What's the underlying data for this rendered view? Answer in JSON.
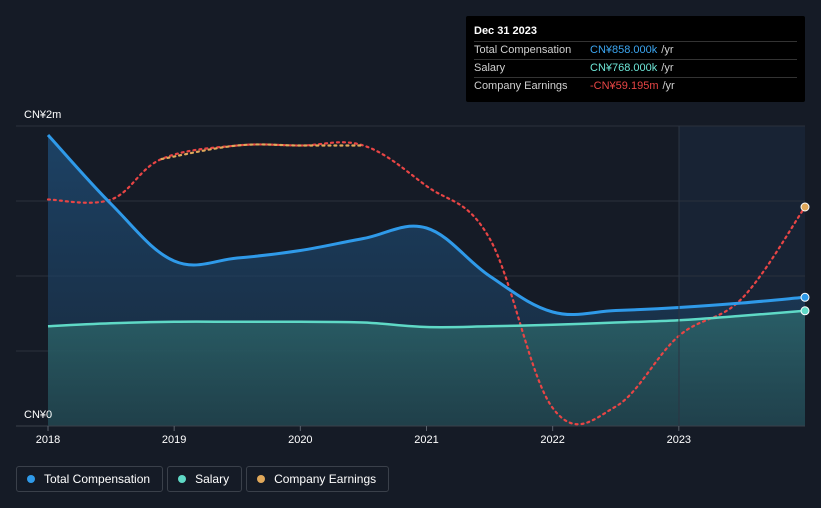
{
  "tooltip": {
    "date": "Dec 31 2023",
    "rows": [
      {
        "label": "Total Compensation",
        "value": "CN¥858.000k",
        "unit": "/yr",
        "color": "#3ba5f0"
      },
      {
        "label": "Salary",
        "value": "CN¥768.000k",
        "unit": "/yr",
        "color": "#6ee7d8"
      },
      {
        "label": "Company Earnings",
        "value": "-CN¥59.195m",
        "unit": "/yr",
        "color": "#e84545"
      }
    ]
  },
  "legend": [
    {
      "label": "Total Compensation",
      "color": "#2f9ae9"
    },
    {
      "label": "Salary",
      "color": "#5fd9c6"
    },
    {
      "label": "Company Earnings",
      "color": "#e0a85a"
    }
  ],
  "chart_data": {
    "type": "line",
    "y_tick_labels": [
      "CN¥2m",
      "CN¥0"
    ],
    "ylim": [
      0,
      2000
    ],
    "y_unit": "CN¥ thousands",
    "xlim": [
      2018.0,
      2024.0
    ],
    "x_ticks": [
      "2018",
      "2019",
      "2020",
      "2021",
      "2022",
      "2023"
    ],
    "forecast_start": 2023.0,
    "series": [
      {
        "name": "Total Compensation",
        "color": "#2f9ae9",
        "points": [
          [
            2018.0,
            1940
          ],
          [
            2018.5,
            1480
          ],
          [
            2019.0,
            1100
          ],
          [
            2019.5,
            1120
          ],
          [
            2020.0,
            1170
          ],
          [
            2020.5,
            1250
          ],
          [
            2021.0,
            1320
          ],
          [
            2021.5,
            1000
          ],
          [
            2022.0,
            760
          ],
          [
            2022.5,
            770
          ],
          [
            2023.0,
            790
          ],
          [
            2023.5,
            820
          ],
          [
            2024.0,
            858
          ]
        ]
      },
      {
        "name": "Salary",
        "color": "#5fd9c6",
        "points": [
          [
            2018.0,
            665
          ],
          [
            2018.5,
            685
          ],
          [
            2019.0,
            695
          ],
          [
            2019.5,
            695
          ],
          [
            2020.0,
            695
          ],
          [
            2020.5,
            690
          ],
          [
            2021.0,
            660
          ],
          [
            2021.5,
            665
          ],
          [
            2022.0,
            675
          ],
          [
            2022.5,
            690
          ],
          [
            2023.0,
            705
          ],
          [
            2023.5,
            735
          ],
          [
            2024.0,
            768
          ]
        ]
      },
      {
        "name": "Company Earnings",
        "color": "#e84545",
        "style": "dotted",
        "points": [
          [
            2018.0,
            1510
          ],
          [
            2018.5,
            1510
          ],
          [
            2018.9,
            1780
          ],
          [
            2019.5,
            1870
          ],
          [
            2020.0,
            1870
          ],
          [
            2020.5,
            1870
          ],
          [
            2021.0,
            1600
          ],
          [
            2021.5,
            1250
          ],
          [
            2022.0,
            120
          ],
          [
            2022.5,
            130
          ],
          [
            2023.0,
            600
          ],
          [
            2023.5,
            850
          ],
          [
            2024.0,
            1460
          ]
        ],
        "axis_note": "earnings plotted on independent scale"
      }
    ]
  }
}
